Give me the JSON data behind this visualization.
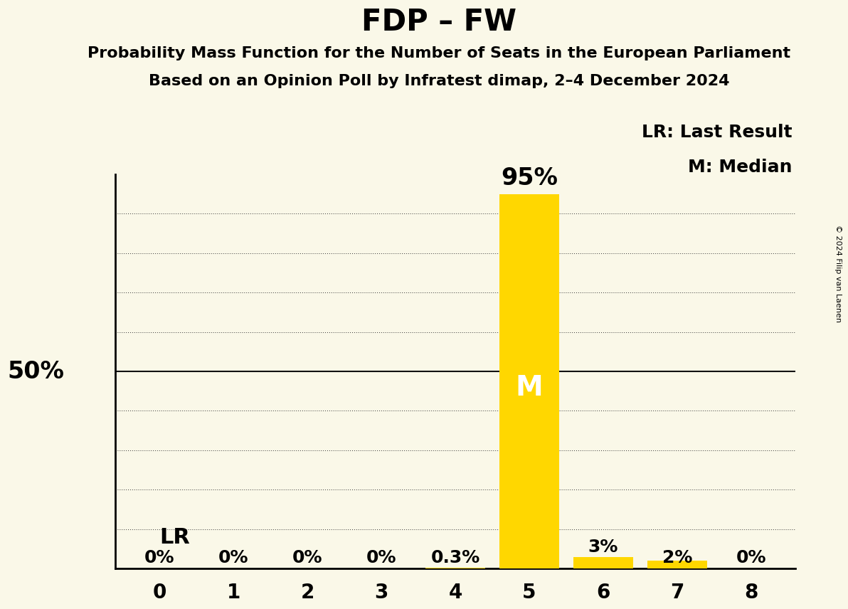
{
  "title": "FDP – FW",
  "subtitle1": "Probability Mass Function for the Number of Seats in the European Parliament",
  "subtitle2": "Based on an Opinion Poll by Infratest dimap, 2–4 December 2024",
  "copyright": "© 2024 Filip van Laenen",
  "seats": [
    0,
    1,
    2,
    3,
    4,
    5,
    6,
    7,
    8
  ],
  "probabilities": [
    0.0,
    0.0,
    0.0,
    0.0,
    0.3,
    95.0,
    3.0,
    2.0,
    0.0
  ],
  "bar_labels": [
    "0%",
    "0%",
    "0%",
    "0%",
    "0.3%",
    "",
    "3%",
    "2%",
    "0%"
  ],
  "bar_color": "#FFD700",
  "median_seat": 5,
  "median_label": "M",
  "lr_label": "LR",
  "legend_lr": "LR: Last Result",
  "legend_m": "M: Median",
  "background_color": "#FAF8E8",
  "ylim": [
    0,
    100
  ],
  "yticks_dotted": [
    10,
    20,
    30,
    40,
    60,
    70,
    80,
    90
  ],
  "yticks_solid": [
    50
  ],
  "y50_label": "50%",
  "title_fontsize": 30,
  "subtitle_fontsize": 16,
  "tick_fontsize": 20,
  "annotation_fontsize": 24,
  "bar_label_fontsize": 18,
  "median_label_fontsize": 28,
  "legend_fontsize": 18,
  "copyright_fontsize": 8,
  "lr_fontsize": 22
}
